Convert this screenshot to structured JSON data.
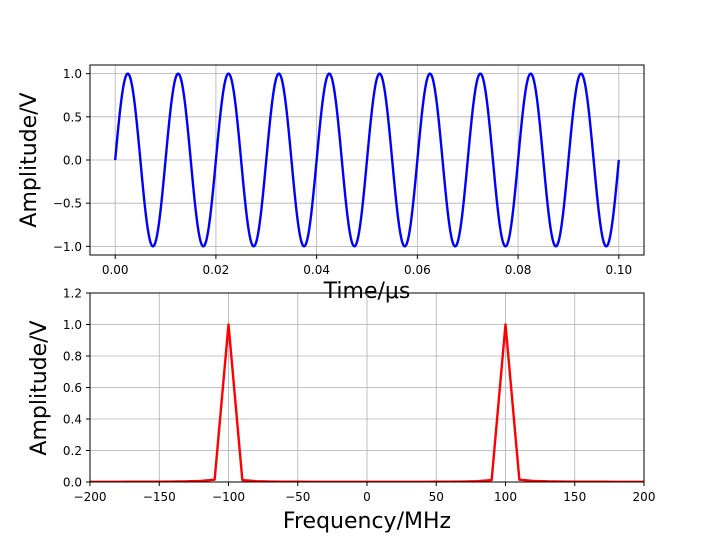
{
  "chart_data": [
    {
      "type": "line",
      "xlabel": "Time/μs",
      "ylabel": "Amplitude/V",
      "xlim": [
        -0.005,
        0.105
      ],
      "ylim": [
        -1.1,
        1.1
      ],
      "xticks": [
        0.0,
        0.02,
        0.04,
        0.06,
        0.08,
        0.1
      ],
      "xtick_labels": [
        "0.00",
        "0.02",
        "0.04",
        "0.06",
        "0.08",
        "0.10"
      ],
      "yticks": [
        -1.0,
        -0.5,
        0.0,
        0.5,
        1.0
      ],
      "ytick_labels": [
        "−1.0",
        "−0.5",
        "0.0",
        "0.5",
        "1.0"
      ],
      "grid": true,
      "series": [
        {
          "color": "#0000ff",
          "function": "sin(2*pi*100MHz*t)",
          "frequency_mhz": 100,
          "amplitude": 1.0,
          "x_start": 0.0,
          "x_end": 0.1
        }
      ]
    },
    {
      "type": "line",
      "xlabel": "Frequency/MHz",
      "ylabel": "Amplitude/V",
      "xlim": [
        -200,
        200
      ],
      "ylim": [
        0,
        1.2
      ],
      "xticks": [
        -200,
        -150,
        -100,
        -50,
        0,
        50,
        100,
        150,
        200
      ],
      "xtick_labels": [
        "−200",
        "−150",
        "−100",
        "−50",
        "0",
        "50",
        "100",
        "150",
        "200"
      ],
      "yticks": [
        0.0,
        0.2,
        0.4,
        0.6,
        0.8,
        1.0,
        1.2
      ],
      "ytick_labels": [
        "0.0",
        "0.2",
        "0.4",
        "0.6",
        "0.8",
        "1.0",
        "1.2"
      ],
      "grid": true,
      "series": [
        {
          "color": "#ff0000",
          "x": [
            -200,
            -190,
            -180,
            -170,
            -160,
            -150,
            -140,
            -130,
            -120,
            -110,
            -100,
            -90,
            -80,
            -70,
            -60,
            -50,
            -40,
            -30,
            -20,
            -10,
            0,
            10,
            20,
            30,
            40,
            50,
            60,
            70,
            80,
            90,
            100,
            110,
            120,
            130,
            140,
            150,
            160,
            170,
            180,
            190,
            200
          ],
          "y": [
            0.001,
            0.001,
            0.001,
            0.002,
            0.002,
            0.002,
            0.003,
            0.004,
            0.007,
            0.015,
            1.0,
            0.012,
            0.005,
            0.003,
            0.002,
            0.002,
            0.001,
            0.001,
            0.001,
            0.001,
            0.001,
            0.001,
            0.001,
            0.001,
            0.001,
            0.002,
            0.002,
            0.003,
            0.005,
            0.012,
            1.0,
            0.015,
            0.007,
            0.004,
            0.003,
            0.002,
            0.002,
            0.002,
            0.001,
            0.001,
            0.001
          ]
        }
      ]
    }
  ]
}
